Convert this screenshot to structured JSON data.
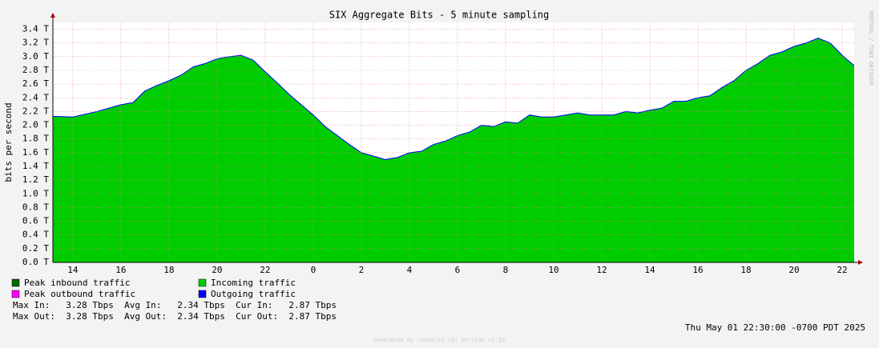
{
  "chart_data": {
    "type": "area",
    "title": "SIX Aggregate Bits - 5 minute sampling",
    "y_label": "bits per second",
    "x": [
      13.17,
      14,
      15,
      16,
      16.5,
      17,
      17.5,
      18,
      18.5,
      19,
      19.5,
      20,
      20.5,
      21,
      21.5,
      22,
      22.5,
      23,
      23.5,
      24,
      24.5,
      25,
      25.5,
      26,
      26.5,
      27,
      27.5,
      28,
      28.5,
      29,
      29.5,
      30,
      30.5,
      31,
      31.5,
      32,
      32.5,
      33,
      33.5,
      34,
      34.5,
      35,
      35.5,
      36,
      36.5,
      37,
      37.5,
      38,
      38.5,
      39,
      39.5,
      40,
      40.5,
      41,
      41.5,
      42,
      42.5,
      43,
      43.5,
      44,
      44.5,
      45,
      45.5,
      46,
      46.5
    ],
    "series": [
      {
        "name": "Incoming traffic",
        "color": "#00cc00",
        "values": [
          2.13,
          2.12,
          2.2,
          2.3,
          2.33,
          2.5,
          2.58,
          2.65,
          2.73,
          2.85,
          2.9,
          2.97,
          3.0,
          3.02,
          2.95,
          2.78,
          2.62,
          2.45,
          2.3,
          2.15,
          1.98,
          1.85,
          1.72,
          1.6,
          1.55,
          1.5,
          1.53,
          1.6,
          1.62,
          1.72,
          1.77,
          1.85,
          1.9,
          2.0,
          1.98,
          2.05,
          2.03,
          2.15,
          2.12,
          2.12,
          2.15,
          2.18,
          2.15,
          2.15,
          2.15,
          2.2,
          2.18,
          2.22,
          2.25,
          2.35,
          2.35,
          2.4,
          2.43,
          2.55,
          2.65,
          2.8,
          2.9,
          3.02,
          3.07,
          3.15,
          3.2,
          3.27,
          3.2,
          3.02,
          2.87
        ]
      },
      {
        "name": "Outgoing traffic",
        "color": "#0000ff",
        "values": [
          2.13,
          2.12,
          2.2,
          2.3,
          2.33,
          2.5,
          2.58,
          2.65,
          2.73,
          2.85,
          2.9,
          2.97,
          3.0,
          3.02,
          2.95,
          2.78,
          2.62,
          2.45,
          2.3,
          2.15,
          1.98,
          1.85,
          1.72,
          1.6,
          1.55,
          1.5,
          1.53,
          1.6,
          1.62,
          1.72,
          1.77,
          1.85,
          1.9,
          2.0,
          1.98,
          2.05,
          2.03,
          2.15,
          2.12,
          2.12,
          2.15,
          2.18,
          2.15,
          2.15,
          2.15,
          2.2,
          2.18,
          2.22,
          2.25,
          2.35,
          2.35,
          2.4,
          2.43,
          2.55,
          2.65,
          2.8,
          2.9,
          3.02,
          3.07,
          3.15,
          3.2,
          3.27,
          3.2,
          3.02,
          2.87
        ]
      }
    ],
    "extra_legend": [
      {
        "name": "Peak inbound traffic",
        "color": "#006600"
      },
      {
        "name": "Peak outbound traffic",
        "color": "#ff00ff"
      }
    ],
    "xlim": [
      13.17,
      46.5
    ],
    "xticks": [
      14,
      16,
      18,
      20,
      22,
      {
        "value": 24,
        "label": "0"
      },
      {
        "value": 26,
        "label": "2"
      },
      {
        "value": 28,
        "label": "4"
      },
      {
        "value": 30,
        "label": "6"
      },
      {
        "value": 32,
        "label": "8"
      },
      {
        "value": 34,
        "label": "10"
      },
      {
        "value": 36,
        "label": "12"
      },
      {
        "value": 38,
        "label": "14"
      },
      {
        "value": 40,
        "label": "16"
      },
      {
        "value": 42,
        "label": "18"
      },
      {
        "value": 44,
        "label": "20"
      },
      {
        "value": 46,
        "label": "22"
      }
    ],
    "ylim": [
      0,
      3.5
    ],
    "yticks": [
      {
        "value": 0,
        "label": "0.0 T"
      },
      {
        "value": 0.2,
        "label": "0.2 T"
      },
      {
        "value": 0.4,
        "label": "0.4 T"
      },
      {
        "value": 0.6,
        "label": "0.6 T"
      },
      {
        "value": 0.8,
        "label": "0.8 T"
      },
      {
        "value": 1.0,
        "label": "1.0 T"
      },
      {
        "value": 1.2,
        "label": "1.2 T"
      },
      {
        "value": 1.4,
        "label": "1.4 T"
      },
      {
        "value": 1.6,
        "label": "1.6 T"
      },
      {
        "value": 1.8,
        "label": "1.8 T"
      },
      {
        "value": 2.0,
        "label": "2.0 T"
      },
      {
        "value": 2.2,
        "label": "2.2 T"
      },
      {
        "value": 2.4,
        "label": "2.4 T"
      },
      {
        "value": 2.6,
        "label": "2.6 T"
      },
      {
        "value": 2.8,
        "label": "2.8 T"
      },
      {
        "value": 3.0,
        "label": "3.0 T"
      },
      {
        "value": 3.2,
        "label": "3.2 T"
      },
      {
        "value": 3.4,
        "label": "3.4 T"
      }
    ],
    "grid": true,
    "stats": [
      "Max In:   3.28 Tbps  Avg In:   2.34 Tbps  Cur In:   2.87 Tbps",
      "Max Out:  3.28 Tbps  Avg Out:  2.34 Tbps  Cur Out:  2.87 Tbps"
    ],
    "timestamp": "Thu May 01 22:30:00 -0700 PDT 2025",
    "watermark": "RRDTOOL / TOBI OETIKER",
    "footer": "Generated by routers2.cgi Version v2.23"
  }
}
